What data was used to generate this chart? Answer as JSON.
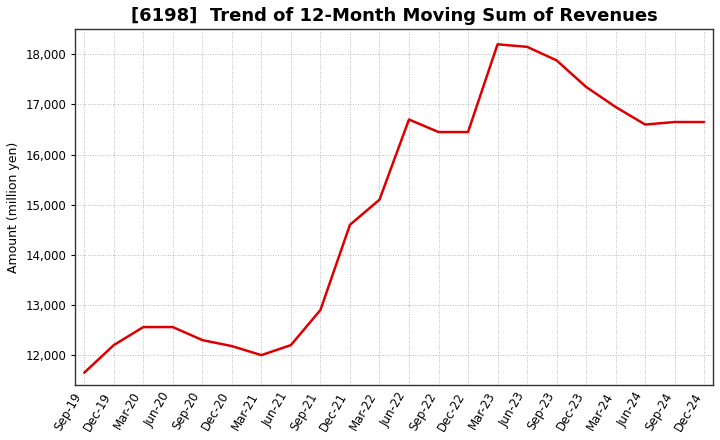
{
  "title": "[6198]  Trend of 12-Month Moving Sum of Revenues",
  "ylabel": "Amount (million yen)",
  "line_color": "#DD0000",
  "line_width": 1.8,
  "background_color": "#FFFFFF",
  "plot_bg_color": "#FFFFFF",
  "grid_color": "#999999",
  "spine_color": "#333333",
  "x_labels": [
    "Sep-19",
    "Dec-19",
    "Mar-20",
    "Jun-20",
    "Sep-20",
    "Dec-20",
    "Mar-21",
    "Jun-21",
    "Sep-21",
    "Dec-21",
    "Mar-22",
    "Jun-22",
    "Sep-22",
    "Dec-22",
    "Mar-23",
    "Jun-23",
    "Sep-23",
    "Dec-23",
    "Mar-24",
    "Jun-24",
    "Sep-24",
    "Dec-24"
  ],
  "values": [
    11650,
    12200,
    12560,
    12560,
    12300,
    12180,
    12000,
    12200,
    12900,
    14600,
    15100,
    16700,
    16450,
    16450,
    18200,
    18150,
    17880,
    17350,
    16950,
    16600,
    16650,
    16650
  ],
  "ylim_min": 11400,
  "ylim_max": 18500,
  "yticks": [
    12000,
    13000,
    14000,
    15000,
    16000,
    17000,
    18000
  ],
  "title_fontsize": 13,
  "label_fontsize": 9,
  "tick_fontsize": 8.5
}
